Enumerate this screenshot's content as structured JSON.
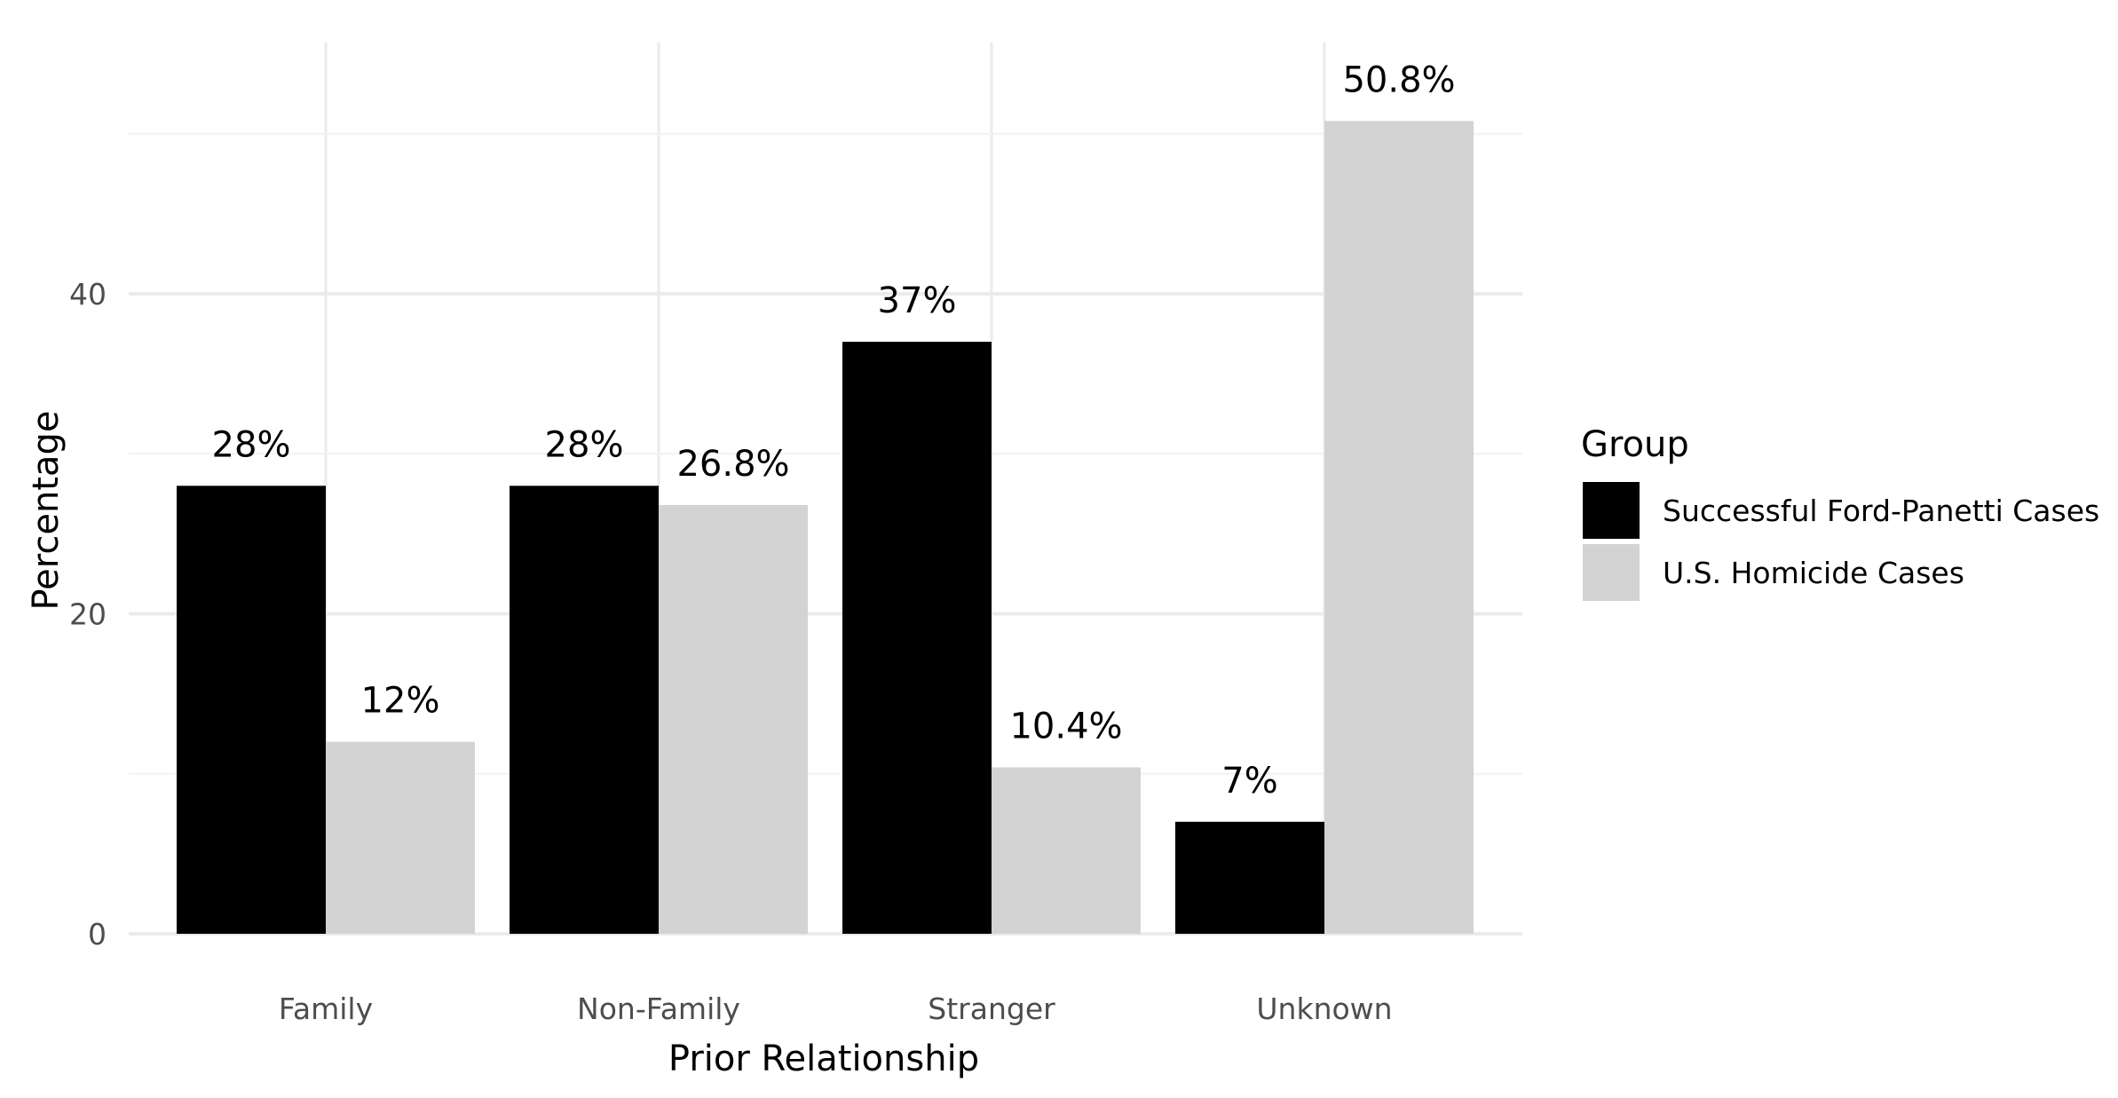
{
  "chart_data": {
    "type": "bar",
    "categories": [
      "Family",
      "Non-Family",
      "Stranger",
      "Unknown"
    ],
    "series": [
      {
        "name": "Successful Ford-Panetti Cases",
        "color": "#000000",
        "values": [
          28,
          28,
          37,
          7
        ],
        "labels": [
          "28%",
          "28%",
          "37%",
          "7%"
        ]
      },
      {
        "name": "U.S. Homicide Cases",
        "color": "#d3d3d3",
        "values": [
          12,
          26.8,
          10.4,
          50.8
        ],
        "labels": [
          "12%",
          "26.8%",
          "10.4%",
          "50.8%"
        ]
      }
    ],
    "xlabel": "Prior Relationship",
    "ylabel": "Percentage",
    "ylim": [
      0,
      52.5
    ],
    "yticks": [
      0,
      20,
      40
    ],
    "yticks_minor": [
      10,
      30,
      50
    ],
    "legend": {
      "title": "Group",
      "position": "right"
    },
    "grid": true
  }
}
